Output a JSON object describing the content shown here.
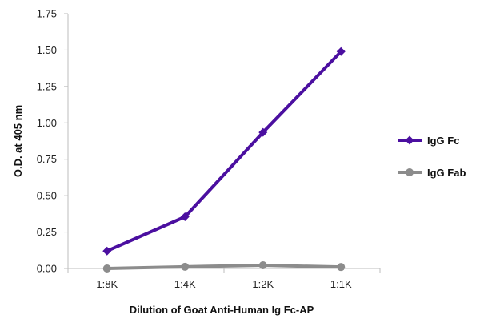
{
  "chart_data": {
    "type": "line",
    "title": "",
    "xlabel": "Dilution of Goat Anti-Human Ig Fc-AP",
    "ylabel": "O.D. at 405 nm",
    "categories": [
      "1:8K",
      "1:4K",
      "1:2K",
      "1:1K"
    ],
    "ylim": [
      0,
      1.75
    ],
    "yticks": [
      "0.00",
      "0.25",
      "0.50",
      "0.75",
      "1.00",
      "1.25",
      "1.50",
      "1.75"
    ],
    "grid": false,
    "legend_position": "right",
    "series": [
      {
        "name": "IgG Fc",
        "values": [
          0.12,
          0.355,
          0.935,
          1.49
        ],
        "color": "#4B0FA0",
        "marker": "diamond"
      },
      {
        "name": "IgG Fab",
        "values": [
          0.0,
          0.012,
          0.022,
          0.01
        ],
        "color": "#8C8C8C",
        "marker": "circle"
      }
    ]
  }
}
